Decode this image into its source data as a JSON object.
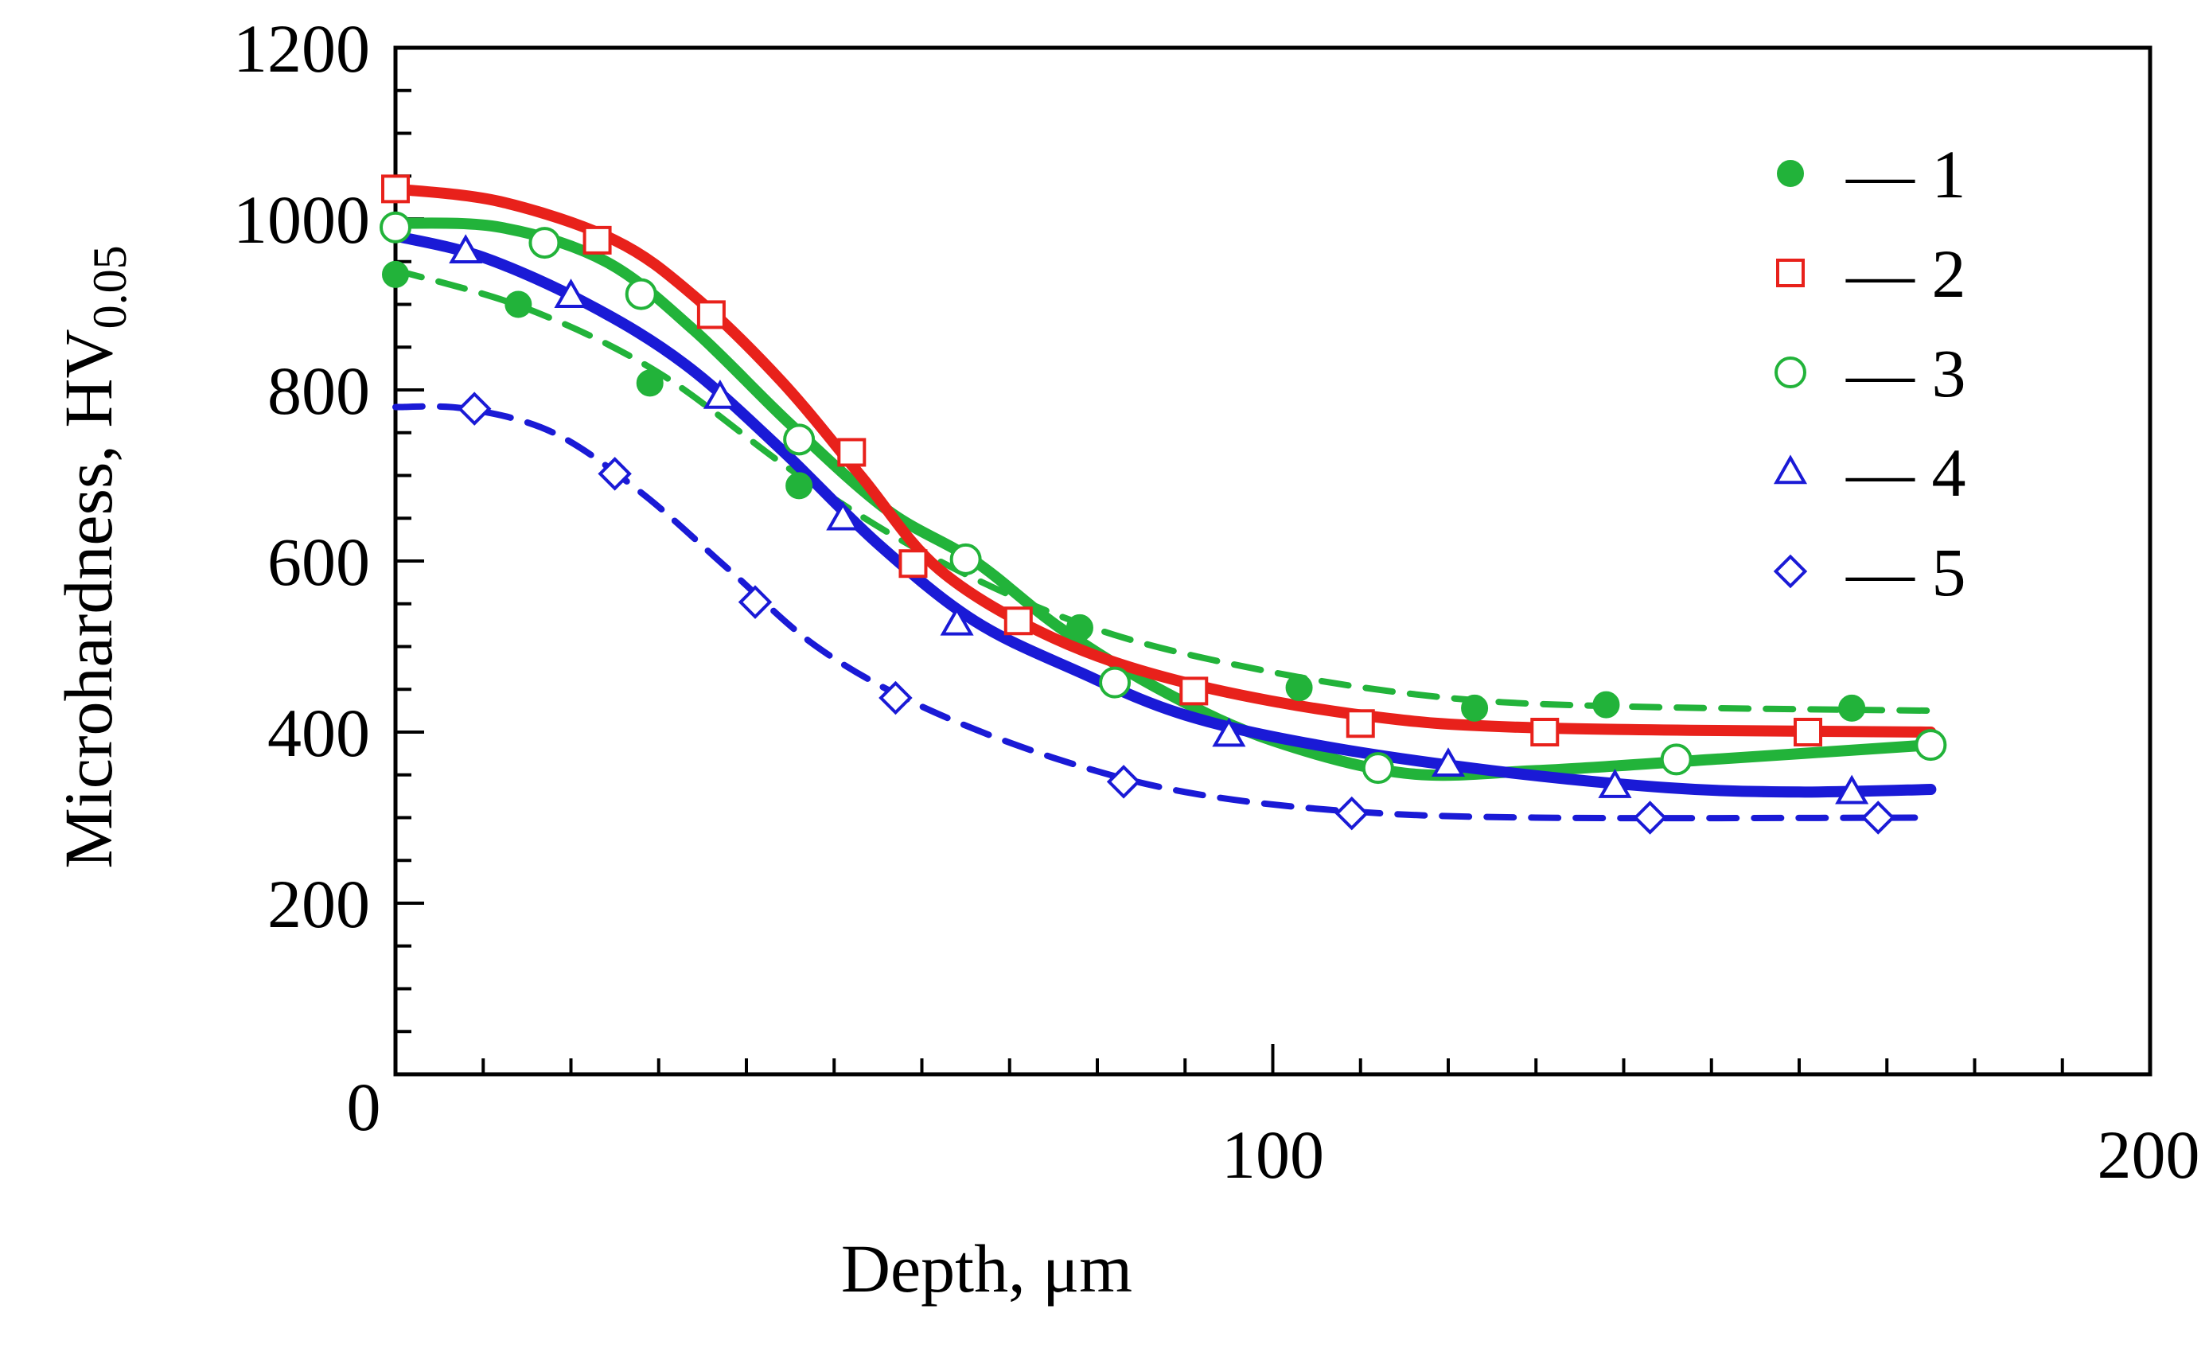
{
  "chart_data": {
    "type": "line",
    "title": "",
    "xlabel": "Depth, μm",
    "ylabel": {
      "main": "Microhardness, HV",
      "subscript": "0.05"
    },
    "xlim": [
      0,
      200
    ],
    "ylim": [
      0,
      1200
    ],
    "x_ticks": [
      "0",
      "100",
      "200"
    ],
    "y_ticks": [
      "200",
      "400",
      "600",
      "800",
      "1000",
      "1200"
    ],
    "legend_position": "top-right",
    "series": [
      {
        "name": "1",
        "legend_text": "— 1",
        "color": "#22b33a",
        "marker": "filled-circle",
        "line_style": "dashed",
        "points": [
          [
            0,
            935
          ],
          [
            14,
            900
          ],
          [
            29,
            808
          ],
          [
            46,
            688
          ],
          [
            78,
            522
          ],
          [
            103,
            452
          ],
          [
            123,
            428
          ],
          [
            138,
            432
          ],
          [
            166,
            428
          ]
        ],
        "fit": [
          [
            0,
            940
          ],
          [
            15,
            895
          ],
          [
            30,
            820
          ],
          [
            46,
            700
          ],
          [
            62,
            600
          ],
          [
            80,
            520
          ],
          [
            100,
            470
          ],
          [
            120,
            440
          ],
          [
            140,
            430
          ],
          [
            175,
            425
          ]
        ]
      },
      {
        "name": "2",
        "legend_text": "— 2",
        "color": "#e8211b",
        "marker": "open-square",
        "line_style": "solid",
        "points": [
          [
            0,
            1035
          ],
          [
            23,
            975
          ],
          [
            36,
            888
          ],
          [
            52,
            727
          ],
          [
            59,
            597
          ],
          [
            71,
            530
          ],
          [
            91,
            448
          ],
          [
            110,
            410
          ],
          [
            131,
            400
          ],
          [
            161,
            400
          ]
        ],
        "fit": [
          [
            0,
            1035
          ],
          [
            12,
            1020
          ],
          [
            25,
            975
          ],
          [
            34,
            910
          ],
          [
            44,
            810
          ],
          [
            53,
            700
          ],
          [
            62,
            590
          ],
          [
            75,
            510
          ],
          [
            90,
            458
          ],
          [
            110,
            420
          ],
          [
            130,
            405
          ],
          [
            175,
            400
          ]
        ]
      },
      {
        "name": "3",
        "legend_text": "— 3",
        "color": "#22b33a",
        "marker": "open-circle",
        "line_style": "solid",
        "points": [
          [
            0,
            990
          ],
          [
            17,
            972
          ],
          [
            28,
            912
          ],
          [
            46,
            742
          ],
          [
            65,
            602
          ],
          [
            82,
            458
          ],
          [
            112,
            358
          ],
          [
            146,
            368
          ],
          [
            175,
            385
          ]
        ],
        "fit": [
          [
            0,
            995
          ],
          [
            12,
            990
          ],
          [
            24,
            950
          ],
          [
            34,
            870
          ],
          [
            45,
            760
          ],
          [
            56,
            660
          ],
          [
            66,
            600
          ],
          [
            76,
            520
          ],
          [
            88,
            445
          ],
          [
            100,
            390
          ],
          [
            115,
            352
          ],
          [
            130,
            355
          ],
          [
            150,
            368
          ],
          [
            175,
            385
          ]
        ]
      },
      {
        "name": "4",
        "legend_text": "— 4",
        "color": "#1a1ad6",
        "marker": "open-triangle",
        "line_style": "solid",
        "points": [
          [
            8,
            962
          ],
          [
            20,
            910
          ],
          [
            37,
            792
          ],
          [
            51,
            650
          ],
          [
            64,
            527
          ],
          [
            95,
            397
          ],
          [
            120,
            362
          ],
          [
            139,
            337
          ],
          [
            166,
            330
          ]
        ],
        "fit": [
          [
            0,
            980
          ],
          [
            10,
            955
          ],
          [
            22,
            900
          ],
          [
            33,
            830
          ],
          [
            44,
            730
          ],
          [
            55,
            620
          ],
          [
            66,
            530
          ],
          [
            78,
            470
          ],
          [
            90,
            420
          ],
          [
            105,
            385
          ],
          [
            125,
            355
          ],
          [
            145,
            335
          ],
          [
            160,
            330
          ],
          [
            175,
            333
          ]
        ]
      },
      {
        "name": "5",
        "legend_text": "— 5",
        "color": "#1a1ad6",
        "marker": "open-diamond",
        "line_style": "dashed",
        "points": [
          [
            9,
            778
          ],
          [
            25,
            702
          ],
          [
            41,
            552
          ],
          [
            57,
            440
          ],
          [
            83,
            342
          ],
          [
            109,
            305
          ],
          [
            143,
            300
          ],
          [
            169,
            300
          ]
        ],
        "fit": [
          [
            0,
            780
          ],
          [
            8,
            778
          ],
          [
            18,
            750
          ],
          [
            28,
            680
          ],
          [
            38,
            590
          ],
          [
            48,
            500
          ],
          [
            60,
            430
          ],
          [
            75,
            370
          ],
          [
            90,
            330
          ],
          [
            108,
            308
          ],
          [
            130,
            300
          ],
          [
            175,
            300
          ]
        ]
      }
    ]
  }
}
